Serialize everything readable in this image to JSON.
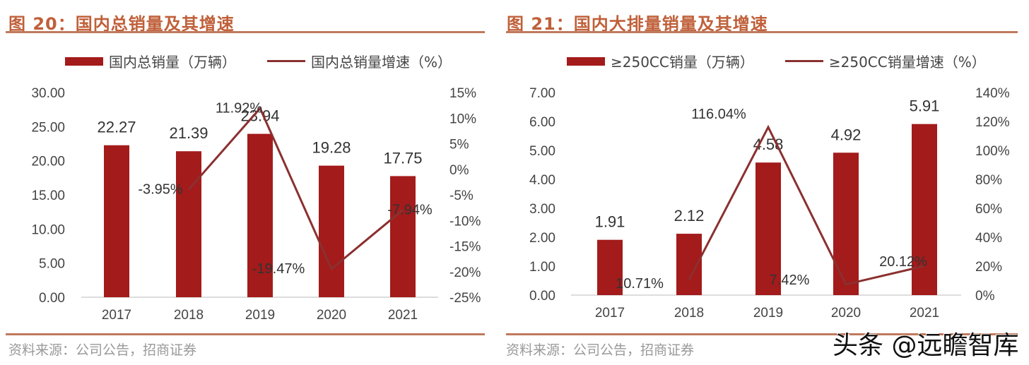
{
  "colors": {
    "bar": "#a31b1b",
    "line": "#8b3030",
    "title": "#c0603a",
    "rule": "#c07a5e"
  },
  "watermark": "头条 @远瞻智库",
  "chart_data": [
    {
      "type": "bar+line",
      "title": "图 20：国内总销量及其增速",
      "categories": [
        "2017",
        "2018",
        "2019",
        "2020",
        "2021"
      ],
      "series": [
        {
          "name": "国内总销量（万辆）",
          "type": "bar",
          "axis": "left",
          "values": [
            22.27,
            21.39,
            23.94,
            19.28,
            17.75
          ],
          "labels": [
            "22.27",
            "21.39",
            "23.94",
            "19.28",
            "17.75"
          ]
        },
        {
          "name": "国内总销量增速（%）",
          "type": "line",
          "axis": "right",
          "values": [
            null,
            -3.95,
            11.92,
            -19.47,
            -7.94
          ],
          "labels": [
            "",
            "-3.95%",
            "11.92%",
            "-19.47%",
            "-7.94%"
          ]
        }
      ],
      "left_axis": {
        "ylim": [
          0,
          30
        ],
        "ticks": [
          "0.00",
          "5.00",
          "10.00",
          "15.00",
          "20.00",
          "25.00",
          "30.00"
        ]
      },
      "right_axis": {
        "ylim": [
          -25,
          15
        ],
        "ticks": [
          "-25%",
          "-20%",
          "-15%",
          "-10%",
          "-5%",
          "0%",
          "5%",
          "10%",
          "15%"
        ]
      },
      "legend": "top",
      "grid": false,
      "source": "资料来源：公司公告，招商证券"
    },
    {
      "type": "bar+line",
      "title": "图 21：国内大排量销量及其增速",
      "categories": [
        "2017",
        "2018",
        "2019",
        "2020",
        "2021"
      ],
      "series": [
        {
          "name": "≥250CC销量（万辆）",
          "type": "bar",
          "axis": "left",
          "values": [
            1.91,
            2.12,
            4.58,
            4.92,
            5.91
          ],
          "labels": [
            "1.91",
            "2.12",
            "4.58",
            "4.92",
            "5.91"
          ]
        },
        {
          "name": "≥250CC销量增速（%）",
          "type": "line",
          "axis": "right",
          "values": [
            null,
            10.71,
            116.04,
            7.42,
            20.12
          ],
          "labels": [
            "",
            "10.71%",
            "116.04%",
            "7.42%",
            "20.12%"
          ]
        }
      ],
      "left_axis": {
        "ylim": [
          0,
          7
        ],
        "ticks": [
          "0.00",
          "1.00",
          "2.00",
          "3.00",
          "4.00",
          "5.00",
          "6.00",
          "7.00"
        ]
      },
      "right_axis": {
        "ylim": [
          0,
          140
        ],
        "ticks": [
          "0%",
          "20%",
          "40%",
          "60%",
          "80%",
          "100%",
          "120%",
          "140%"
        ]
      },
      "legend": "top",
      "grid": false,
      "source": "资料来源：公司公告，招商证券"
    }
  ]
}
